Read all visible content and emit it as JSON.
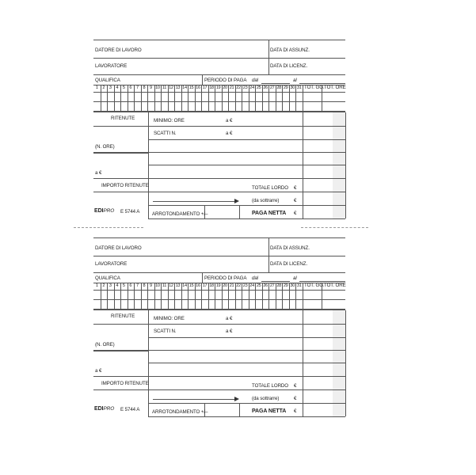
{
  "form": {
    "employer_label": "DATORE DI LAVORO",
    "hire_date_label": "DATA DI ASSUNZ.",
    "worker_label": "LAVORATORE",
    "termination_date_label": "DATA DI LICENZ.",
    "qualification_label": "QUALIFICA",
    "pay_period_label": "PERIODO DI PAGA",
    "from_label": "dal",
    "to_label": "al",
    "days": [
      "1",
      "2",
      "3",
      "4",
      "5",
      "6",
      "7",
      "8",
      "9",
      "10",
      "11",
      "12",
      "13",
      "14",
      "15",
      "16",
      "17",
      "18",
      "19",
      "20",
      "21",
      "22",
      "23",
      "24",
      "25",
      "26",
      "27",
      "28",
      "29",
      "30",
      "31"
    ],
    "total_days_label": "TOT. GG.",
    "total_hours_label": "TOT. ORE",
    "deductions_label": "RITENUTE",
    "minimum_hours_label": "MINIMO: ORE",
    "rate_label": "a €",
    "steps_label": "SCATTI N.",
    "hours_count_label": "(N. ORE)",
    "deductions_amount_label": "IMPORTO RITENUTE",
    "gross_total_label": "TOTALE LORDO",
    "euro": "€",
    "to_subtract_label": "(da sottrarre)",
    "rounding_label": "ARROTONDAMENTO +/–",
    "net_pay_label": "PAGA NETTA",
    "brand_logo": "EDIPRO",
    "brand_bold": "EDI",
    "brand_italic": "PRO",
    "form_code": "E 5744 A"
  },
  "forms_count_shown": 2
}
